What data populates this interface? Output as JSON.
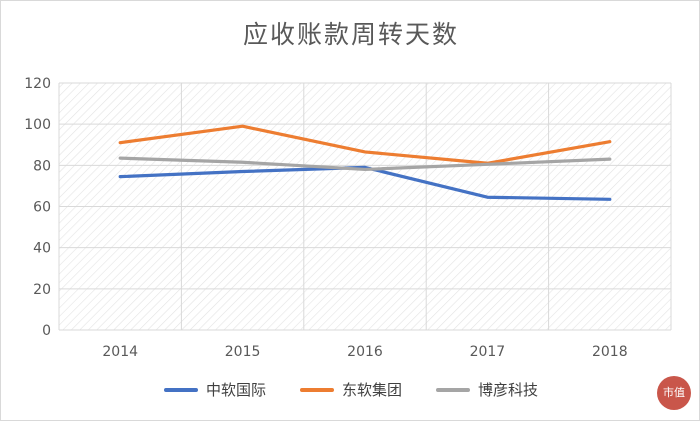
{
  "chart_data": {
    "type": "line",
    "title": "应收账款周转天数",
    "categories": [
      "2014",
      "2015",
      "2016",
      "2017",
      "2018"
    ],
    "ylim": [
      0,
      120
    ],
    "yticks": [
      0,
      20,
      40,
      60,
      80,
      100,
      120
    ],
    "grid": true,
    "legend_position": "bottom",
    "series": [
      {
        "name": "中软国际",
        "color": "#4472C4",
        "values": [
          74.5,
          77,
          79,
          64.5,
          63.5
        ]
      },
      {
        "name": "东软集团",
        "color": "#ED7D31",
        "values": [
          91,
          99,
          86.5,
          81,
          91.5
        ]
      },
      {
        "name": "博彦科技",
        "color": "#A5A5A5",
        "values": [
          83.5,
          81.5,
          78,
          80.5,
          83
        ]
      }
    ]
  },
  "watermark": {
    "logo_text": "市值"
  }
}
